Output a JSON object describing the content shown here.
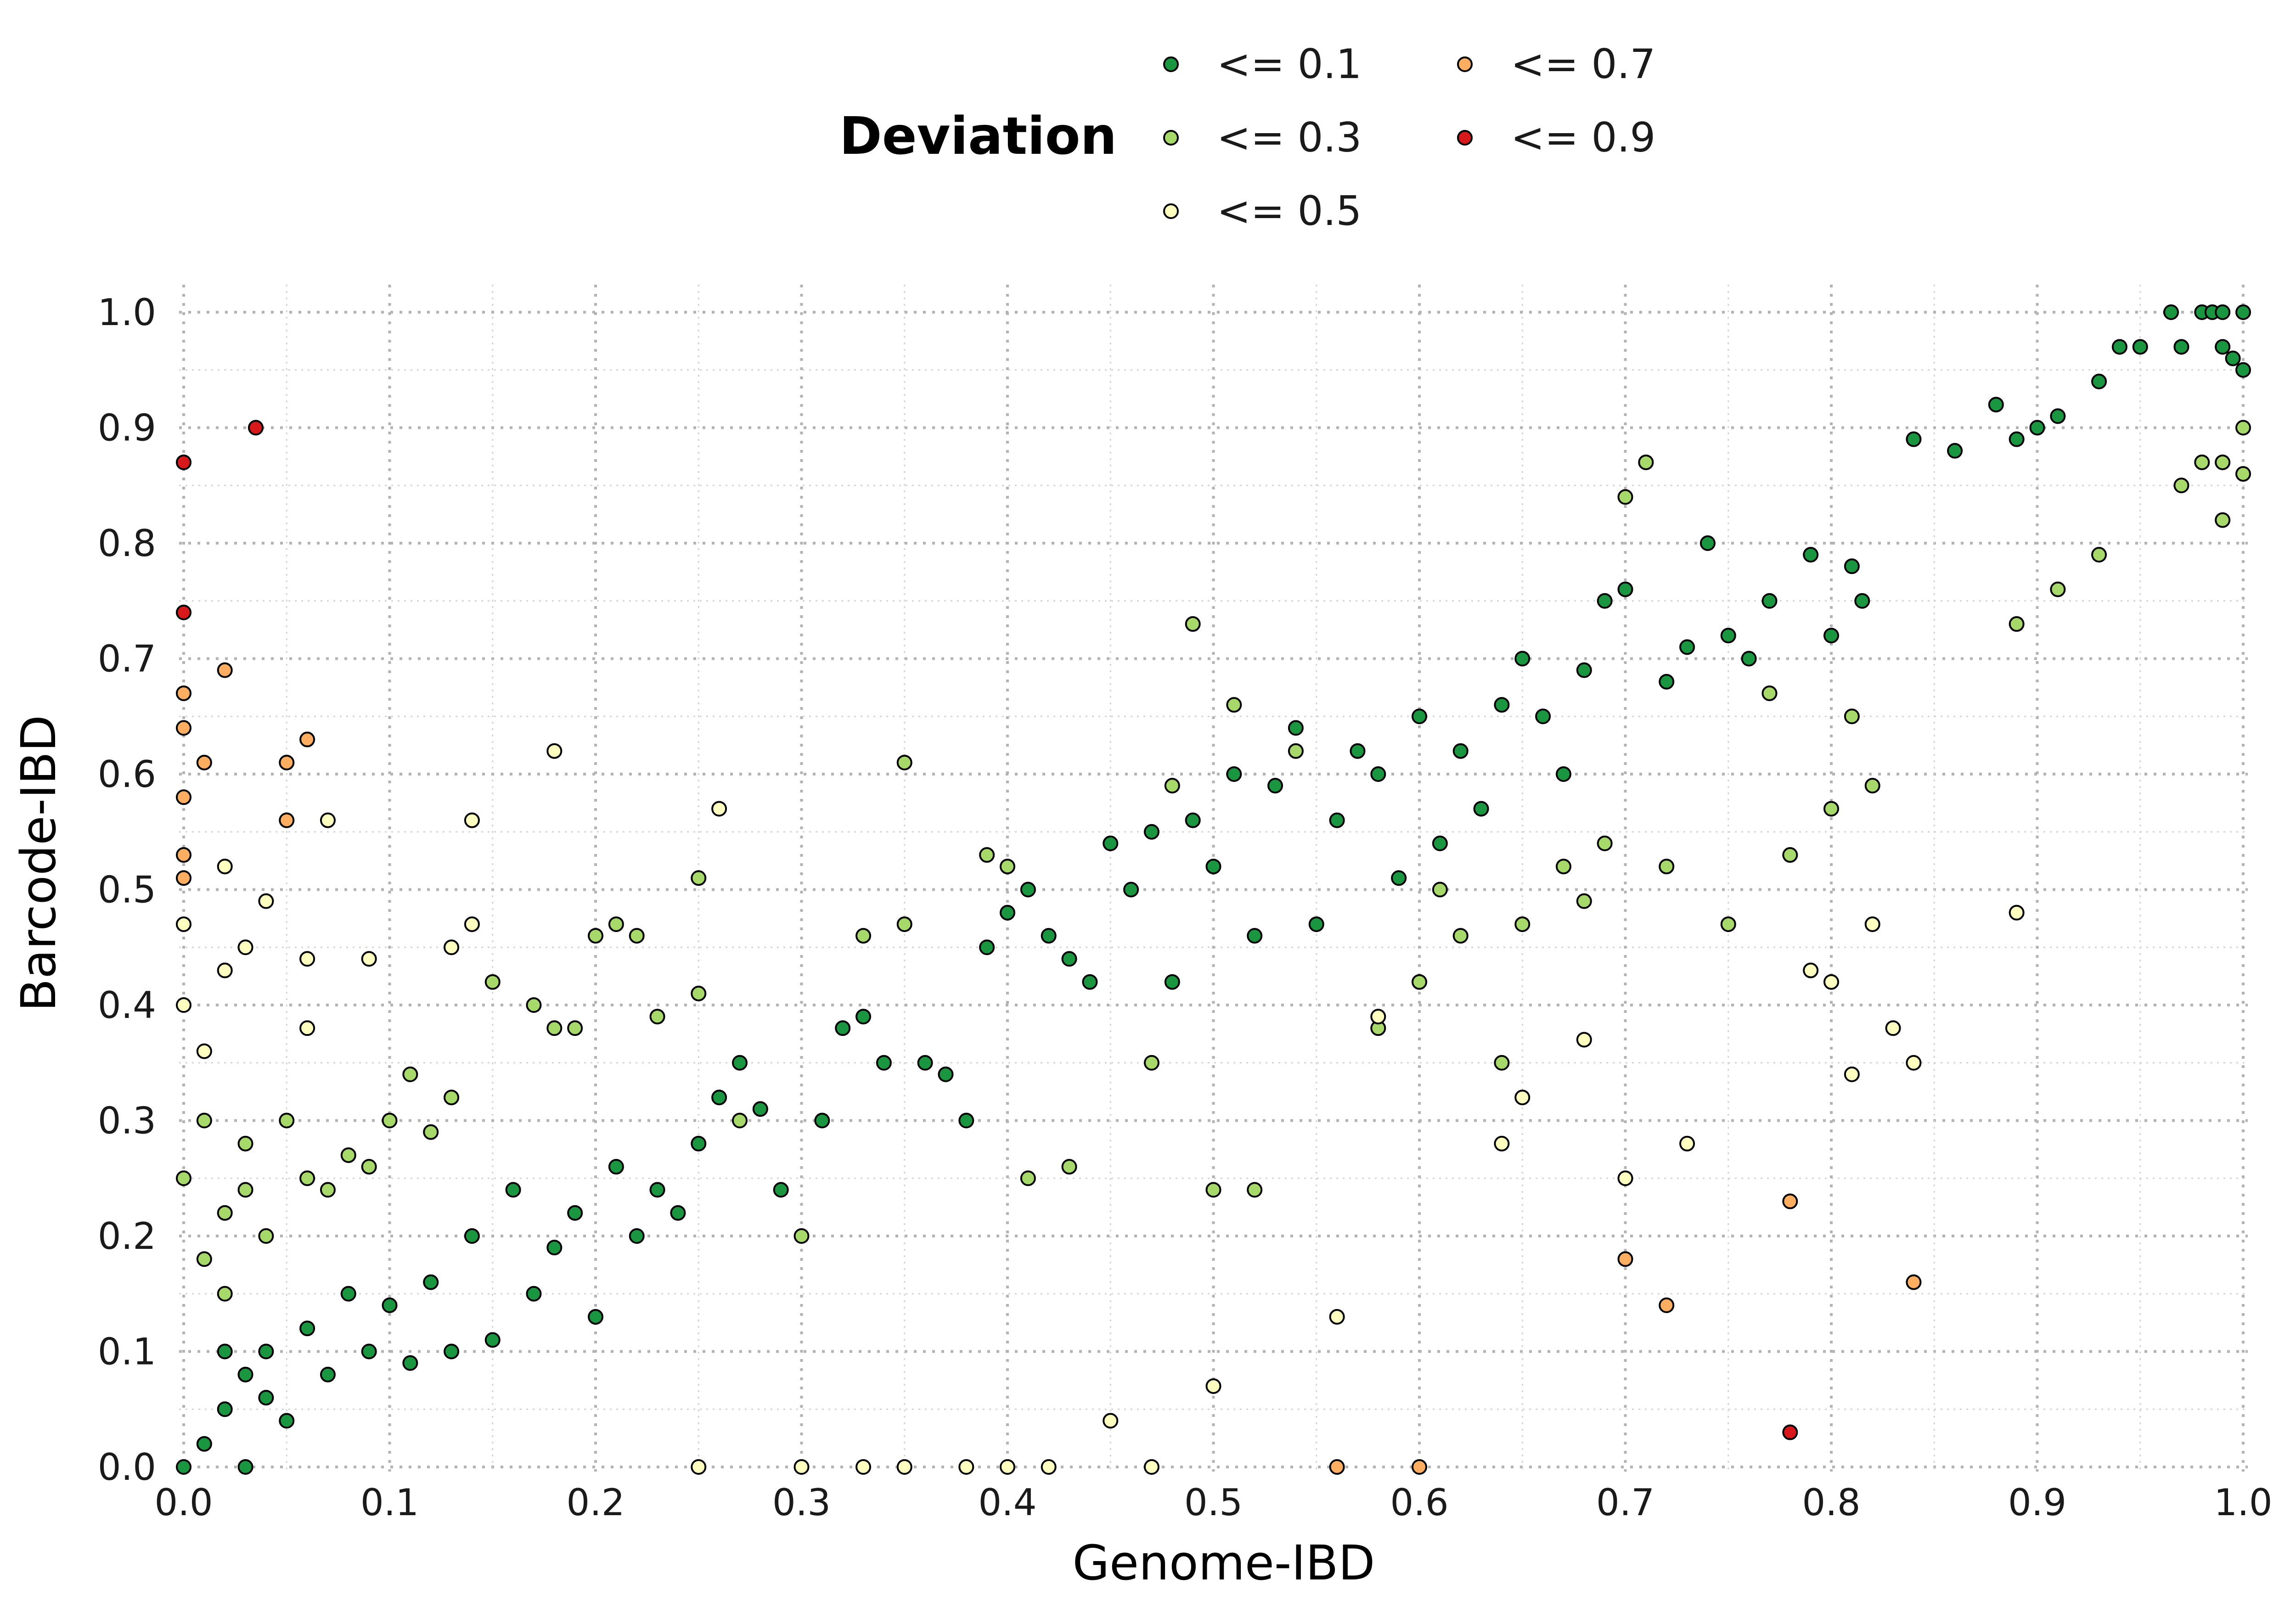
{
  "chart_data": {
    "type": "scatter",
    "xlabel": "Genome-IBD",
    "ylabel": "Barcode-IBD",
    "xlim": [
      0.0,
      1.0
    ],
    "ylim": [
      0.0,
      1.0
    ],
    "xticks": [
      0.0,
      0.1,
      0.2,
      0.3,
      0.4,
      0.5,
      0.6,
      0.7,
      0.8,
      0.9,
      1.0
    ],
    "yticks": [
      0.0,
      0.1,
      0.2,
      0.3,
      0.4,
      0.5,
      0.6,
      0.7,
      0.8,
      0.9,
      1.0
    ],
    "xtick_labels": [
      "0.0",
      "0.1",
      "0.2",
      "0.3",
      "0.4",
      "0.5",
      "0.6",
      "0.7",
      "0.8",
      "0.9",
      "1.0"
    ],
    "ytick_labels": [
      "0.0",
      "0.1",
      "0.2",
      "0.3",
      "0.4",
      "0.5",
      "0.6",
      "0.7",
      "0.8",
      "0.9",
      "1.0"
    ],
    "grid": true,
    "legend": {
      "title": "Deviation",
      "placement": "top-center"
    },
    "series": [
      {
        "name": "<= 0.1",
        "color": "#1a9641",
        "points": [
          [
            0.0,
            0.0
          ],
          [
            0.01,
            0.02
          ],
          [
            0.02,
            0.05
          ],
          [
            0.03,
            0.08
          ],
          [
            0.04,
            0.1
          ],
          [
            0.05,
            0.04
          ],
          [
            0.06,
            0.12
          ],
          [
            0.07,
            0.08
          ],
          [
            0.08,
            0.15
          ],
          [
            0.09,
            0.1
          ],
          [
            0.1,
            0.14
          ],
          [
            0.11,
            0.09
          ],
          [
            0.12,
            0.16
          ],
          [
            0.13,
            0.1
          ],
          [
            0.14,
            0.2
          ],
          [
            0.15,
            0.11
          ],
          [
            0.16,
            0.24
          ],
          [
            0.17,
            0.15
          ],
          [
            0.18,
            0.19
          ],
          [
            0.19,
            0.22
          ],
          [
            0.2,
            0.13
          ],
          [
            0.21,
            0.26
          ],
          [
            0.22,
            0.2
          ],
          [
            0.23,
            0.24
          ],
          [
            0.24,
            0.22
          ],
          [
            0.25,
            0.28
          ],
          [
            0.26,
            0.32
          ],
          [
            0.27,
            0.35
          ],
          [
            0.28,
            0.31
          ],
          [
            0.29,
            0.24
          ],
          [
            0.31,
            0.3
          ],
          [
            0.32,
            0.38
          ],
          [
            0.33,
            0.39
          ],
          [
            0.34,
            0.35
          ],
          [
            0.36,
            0.35
          ],
          [
            0.37,
            0.34
          ],
          [
            0.38,
            0.3
          ],
          [
            0.39,
            0.45
          ],
          [
            0.4,
            0.48
          ],
          [
            0.41,
            0.5
          ],
          [
            0.42,
            0.46
          ],
          [
            0.43,
            0.44
          ],
          [
            0.44,
            0.42
          ],
          [
            0.45,
            0.54
          ],
          [
            0.46,
            0.5
          ],
          [
            0.47,
            0.55
          ],
          [
            0.48,
            0.42
          ],
          [
            0.49,
            0.56
          ],
          [
            0.5,
            0.52
          ],
          [
            0.51,
            0.6
          ],
          [
            0.52,
            0.46
          ],
          [
            0.53,
            0.59
          ],
          [
            0.54,
            0.64
          ],
          [
            0.55,
            0.47
          ],
          [
            0.56,
            0.56
          ],
          [
            0.57,
            0.62
          ],
          [
            0.58,
            0.6
          ],
          [
            0.59,
            0.51
          ],
          [
            0.6,
            0.65
          ],
          [
            0.61,
            0.54
          ],
          [
            0.62,
            0.62
          ],
          [
            0.63,
            0.57
          ],
          [
            0.64,
            0.66
          ],
          [
            0.65,
            0.7
          ],
          [
            0.66,
            0.65
          ],
          [
            0.67,
            0.6
          ],
          [
            0.68,
            0.69
          ],
          [
            0.69,
            0.75
          ],
          [
            0.7,
            0.76
          ],
          [
            0.72,
            0.68
          ],
          [
            0.73,
            0.71
          ],
          [
            0.74,
            0.8
          ],
          [
            0.75,
            0.72
          ],
          [
            0.76,
            0.7
          ],
          [
            0.77,
            0.75
          ],
          [
            0.79,
            0.79
          ],
          [
            0.8,
            0.72
          ],
          [
            0.81,
            0.78
          ],
          [
            0.815,
            0.75
          ],
          [
            0.84,
            0.89
          ],
          [
            0.86,
            0.88
          ],
          [
            0.88,
            0.92
          ],
          [
            0.89,
            0.89
          ],
          [
            0.9,
            0.9
          ],
          [
            0.91,
            0.91
          ],
          [
            0.93,
            0.94
          ],
          [
            0.94,
            0.97
          ],
          [
            0.95,
            0.97
          ],
          [
            0.97,
            0.97
          ],
          [
            0.98,
            1.0
          ],
          [
            0.985,
            1.0
          ],
          [
            0.99,
            1.0
          ],
          [
            0.995,
            0.96
          ],
          [
            1.0,
            1.0
          ],
          [
            1.0,
            0.95
          ],
          [
            0.965,
            1.0
          ],
          [
            0.99,
            0.97
          ],
          [
            0.02,
            0.1
          ],
          [
            0.03,
            0.0
          ],
          [
            0.04,
            0.06
          ]
        ]
      },
      {
        "name": "<= 0.3",
        "color": "#a6d96a",
        "points": [
          [
            0.0,
            0.25
          ],
          [
            0.01,
            0.3
          ],
          [
            0.02,
            0.22
          ],
          [
            0.03,
            0.28
          ],
          [
            0.04,
            0.2
          ],
          [
            0.05,
            0.3
          ],
          [
            0.06,
            0.25
          ],
          [
            0.07,
            0.24
          ],
          [
            0.08,
            0.27
          ],
          [
            0.09,
            0.26
          ],
          [
            0.1,
            0.3
          ],
          [
            0.11,
            0.34
          ],
          [
            0.12,
            0.29
          ],
          [
            0.13,
            0.32
          ],
          [
            0.15,
            0.42
          ],
          [
            0.17,
            0.4
          ],
          [
            0.18,
            0.38
          ],
          [
            0.19,
            0.38
          ],
          [
            0.2,
            0.46
          ],
          [
            0.21,
            0.47
          ],
          [
            0.22,
            0.46
          ],
          [
            0.23,
            0.39
          ],
          [
            0.25,
            0.41
          ],
          [
            0.25,
            0.51
          ],
          [
            0.27,
            0.3
          ],
          [
            0.3,
            0.2
          ],
          [
            0.33,
            0.46
          ],
          [
            0.35,
            0.47
          ],
          [
            0.35,
            0.61
          ],
          [
            0.39,
            0.53
          ],
          [
            0.4,
            0.52
          ],
          [
            0.41,
            0.25
          ],
          [
            0.43,
            0.26
          ],
          [
            0.47,
            0.35
          ],
          [
            0.48,
            0.59
          ],
          [
            0.49,
            0.73
          ],
          [
            0.5,
            0.24
          ],
          [
            0.51,
            0.66
          ],
          [
            0.52,
            0.24
          ],
          [
            0.54,
            0.62
          ],
          [
            0.58,
            0.38
          ],
          [
            0.6,
            0.42
          ],
          [
            0.61,
            0.5
          ],
          [
            0.62,
            0.46
          ],
          [
            0.64,
            0.35
          ],
          [
            0.65,
            0.47
          ],
          [
            0.67,
            0.52
          ],
          [
            0.68,
            0.49
          ],
          [
            0.69,
            0.54
          ],
          [
            0.7,
            0.84
          ],
          [
            0.71,
            0.87
          ],
          [
            0.72,
            0.52
          ],
          [
            0.75,
            0.47
          ],
          [
            0.77,
            0.67
          ],
          [
            0.78,
            0.53
          ],
          [
            0.8,
            0.57
          ],
          [
            0.81,
            0.65
          ],
          [
            0.82,
            0.59
          ],
          [
            0.89,
            0.73
          ],
          [
            0.91,
            0.76
          ],
          [
            0.93,
            0.79
          ],
          [
            0.97,
            0.85
          ],
          [
            0.98,
            0.87
          ],
          [
            0.99,
            0.87
          ],
          [
            1.0,
            0.9
          ],
          [
            1.0,
            0.86
          ],
          [
            0.99,
            0.82
          ],
          [
            0.01,
            0.18
          ],
          [
            0.02,
            0.15
          ],
          [
            0.03,
            0.24
          ]
        ]
      },
      {
        "name": "<= 0.5",
        "color": "#ffffbf",
        "points": [
          [
            0.0,
            0.47
          ],
          [
            0.0,
            0.4
          ],
          [
            0.01,
            0.36
          ],
          [
            0.02,
            0.43
          ],
          [
            0.02,
            0.52
          ],
          [
            0.03,
            0.45
          ],
          [
            0.04,
            0.49
          ],
          [
            0.06,
            0.38
          ],
          [
            0.06,
            0.44
          ],
          [
            0.07,
            0.56
          ],
          [
            0.09,
            0.44
          ],
          [
            0.13,
            0.45
          ],
          [
            0.14,
            0.47
          ],
          [
            0.14,
            0.56
          ],
          [
            0.18,
            0.62
          ],
          [
            0.26,
            0.57
          ],
          [
            0.3,
            0.0
          ],
          [
            0.35,
            0.0
          ],
          [
            0.4,
            0.0
          ],
          [
            0.45,
            0.04
          ],
          [
            0.5,
            0.07
          ],
          [
            0.56,
            0.13
          ],
          [
            0.58,
            0.39
          ],
          [
            0.64,
            0.28
          ],
          [
            0.65,
            0.32
          ],
          [
            0.68,
            0.37
          ],
          [
            0.7,
            0.25
          ],
          [
            0.73,
            0.28
          ],
          [
            0.79,
            0.43
          ],
          [
            0.8,
            0.42
          ],
          [
            0.81,
            0.34
          ],
          [
            0.82,
            0.47
          ],
          [
            0.83,
            0.38
          ],
          [
            0.84,
            0.35
          ],
          [
            0.89,
            0.48
          ],
          [
            0.25,
            0.0
          ],
          [
            0.33,
            0.0
          ],
          [
            0.38,
            0.0
          ],
          [
            0.42,
            0.0
          ],
          [
            0.47,
            0.0
          ]
        ]
      },
      {
        "name": "<= 0.7",
        "color": "#fdae61",
        "points": [
          [
            0.0,
            0.67
          ],
          [
            0.0,
            0.64
          ],
          [
            0.0,
            0.58
          ],
          [
            0.0,
            0.53
          ],
          [
            0.0,
            0.51
          ],
          [
            0.01,
            0.61
          ],
          [
            0.02,
            0.69
          ],
          [
            0.05,
            0.61
          ],
          [
            0.06,
            0.63
          ],
          [
            0.05,
            0.56
          ],
          [
            0.56,
            0.0
          ],
          [
            0.6,
            0.0
          ],
          [
            0.7,
            0.18
          ],
          [
            0.72,
            0.14
          ],
          [
            0.78,
            0.23
          ],
          [
            0.84,
            0.16
          ]
        ]
      },
      {
        "name": "<= 0.9",
        "color": "#d7191c",
        "points": [
          [
            0.0,
            0.87
          ],
          [
            0.035,
            0.9
          ],
          [
            0.0,
            0.74
          ],
          [
            0.78,
            0.03
          ]
        ]
      }
    ]
  }
}
